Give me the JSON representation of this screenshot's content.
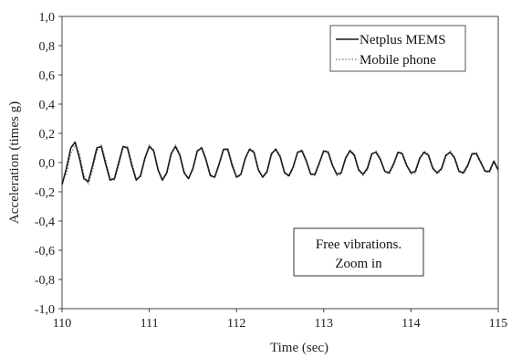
{
  "chart_data": {
    "type": "line",
    "xlabel": "Time (sec)",
    "ylabel": "Acceleration (times g)",
    "xlim": [
      110,
      115
    ],
    "ylim": [
      -1.0,
      1.0
    ],
    "xticks": [
      110,
      111,
      112,
      113,
      114,
      115
    ],
    "yticks": [
      -1.0,
      -0.8,
      -0.6,
      -0.4,
      -0.2,
      0.0,
      0.2,
      0.4,
      0.6,
      0.8,
      1.0
    ],
    "xtick_labels": [
      "110",
      "111",
      "112",
      "113",
      "114",
      "115"
    ],
    "ytick_labels": [
      "-1,0",
      "-0,8",
      "-0,6",
      "-0,4",
      "-0,2",
      "0,0",
      "0,2",
      "0,4",
      "0,6",
      "0,8",
      "1,0"
    ],
    "grid": "none",
    "legend_position": "top-right",
    "annotation": [
      "Free vibrations.",
      "Zoom in"
    ],
    "series": [
      {
        "name": "Netplus MEMS",
        "color": "#1a1a1a",
        "style": "solid",
        "x": [
          110.0,
          110.05,
          110.1,
          110.15,
          110.2,
          110.25,
          110.3,
          110.35,
          110.4,
          110.45,
          110.5,
          110.55,
          110.6,
          110.65,
          110.7,
          110.75,
          110.8,
          110.85,
          110.9,
          110.95,
          111.0,
          111.05,
          111.1,
          111.15,
          111.2,
          111.25,
          111.3,
          111.35,
          111.4,
          111.45,
          111.5,
          111.55,
          111.6,
          111.65,
          111.7,
          111.75,
          111.8,
          111.85,
          111.9,
          111.95,
          112.0,
          112.05,
          112.1,
          112.15,
          112.2,
          112.25,
          112.3,
          112.35,
          112.4,
          112.45,
          112.5,
          112.55,
          112.6,
          112.65,
          112.7,
          112.75,
          112.8,
          112.85,
          112.9,
          112.95,
          113.0,
          113.05,
          113.1,
          113.15,
          113.2,
          113.25,
          113.3,
          113.35,
          113.4,
          113.45,
          113.5,
          113.55,
          113.6,
          113.65,
          113.7,
          113.75,
          113.8,
          113.85,
          113.9,
          113.95,
          114.0,
          114.05,
          114.1,
          114.15,
          114.2,
          114.25,
          114.3,
          114.35,
          114.4,
          114.45,
          114.5,
          114.55,
          114.6,
          114.65,
          114.7,
          114.75,
          114.8,
          114.85,
          114.9,
          114.95,
          115.0
        ],
        "y": [
          -0.15,
          -0.04,
          0.1,
          0.14,
          0.03,
          -0.11,
          -0.13,
          -0.02,
          0.1,
          0.11,
          -0.01,
          -0.12,
          -0.11,
          0.0,
          0.11,
          0.1,
          -0.02,
          -0.12,
          -0.09,
          0.03,
          0.11,
          0.08,
          -0.05,
          -0.12,
          -0.07,
          0.06,
          0.11,
          0.05,
          -0.07,
          -0.11,
          -0.04,
          0.08,
          0.1,
          0.02,
          -0.09,
          -0.1,
          -0.01,
          0.09,
          0.09,
          -0.02,
          -0.1,
          -0.08,
          0.03,
          0.09,
          0.07,
          -0.05,
          -0.1,
          -0.06,
          0.06,
          0.09,
          0.04,
          -0.07,
          -0.09,
          -0.03,
          0.07,
          0.08,
          0.01,
          -0.08,
          -0.08,
          0.0,
          0.08,
          0.07,
          -0.02,
          -0.08,
          -0.07,
          0.03,
          0.08,
          0.05,
          -0.05,
          -0.08,
          -0.04,
          0.06,
          0.07,
          0.02,
          -0.06,
          -0.07,
          -0.01,
          0.07,
          0.06,
          -0.02,
          -0.07,
          -0.06,
          0.03,
          0.07,
          0.05,
          -0.04,
          -0.07,
          -0.04,
          0.05,
          0.07,
          0.03,
          -0.06,
          -0.07,
          -0.02,
          0.06,
          0.06,
          0.0,
          -0.06,
          -0.06,
          0.01,
          -0.05
        ]
      },
      {
        "name": "Mobile phone",
        "color": "#8a8a8a",
        "style": "dotted",
        "x": [
          110.0,
          110.05,
          110.1,
          110.15,
          110.2,
          110.25,
          110.3,
          110.35,
          110.4,
          110.45,
          110.5,
          110.55,
          110.6,
          110.65,
          110.7,
          110.75,
          110.8,
          110.85,
          110.9,
          110.95,
          111.0,
          111.05,
          111.1,
          111.15,
          111.2,
          111.25,
          111.3,
          111.35,
          111.4,
          111.45,
          111.5,
          111.55,
          111.6,
          111.65,
          111.7,
          111.75,
          111.8,
          111.85,
          111.9,
          111.95,
          112.0,
          112.05,
          112.1,
          112.15,
          112.2,
          112.25,
          112.3,
          112.35,
          112.4,
          112.45,
          112.5,
          112.55,
          112.6,
          112.65,
          112.7,
          112.75,
          112.8,
          112.85,
          112.9,
          112.95,
          113.0,
          113.05,
          113.1,
          113.15,
          113.2,
          113.25,
          113.3,
          113.35,
          113.4,
          113.45,
          113.5,
          113.55,
          113.6,
          113.65,
          113.7,
          113.75,
          113.8,
          113.85,
          113.9,
          113.95,
          114.0,
          114.05,
          114.1,
          114.15,
          114.2,
          114.25,
          114.3,
          114.35,
          114.4,
          114.45,
          114.5,
          114.55,
          114.6,
          114.65,
          114.7,
          114.75,
          114.8,
          114.85,
          114.9,
          114.95,
          115.0
        ],
        "y": [
          -0.12,
          -0.08,
          0.06,
          0.12,
          0.06,
          -0.08,
          -0.15,
          -0.05,
          0.08,
          0.12,
          0.02,
          -0.1,
          -0.12,
          -0.02,
          0.1,
          0.11,
          0.0,
          -0.11,
          -0.1,
          0.02,
          0.12,
          0.09,
          -0.04,
          -0.12,
          -0.08,
          0.05,
          0.12,
          0.06,
          -0.06,
          -0.11,
          -0.05,
          0.07,
          0.11,
          0.03,
          -0.08,
          -0.1,
          -0.02,
          0.09,
          0.1,
          0.0,
          -0.1,
          -0.09,
          0.02,
          0.1,
          0.08,
          -0.04,
          -0.1,
          -0.07,
          0.05,
          0.1,
          0.05,
          -0.06,
          -0.1,
          -0.04,
          0.07,
          0.09,
          0.02,
          -0.08,
          -0.09,
          -0.01,
          0.08,
          0.08,
          -0.01,
          -0.09,
          -0.08,
          0.02,
          0.09,
          0.06,
          -0.04,
          -0.09,
          -0.05,
          0.05,
          0.08,
          0.03,
          -0.06,
          -0.08,
          -0.02,
          0.07,
          0.07,
          -0.01,
          -0.08,
          -0.07,
          0.02,
          0.08,
          0.06,
          -0.03,
          -0.08,
          -0.05,
          0.04,
          0.08,
          0.04,
          -0.05,
          -0.08,
          -0.03,
          0.06,
          0.07,
          0.01,
          -0.06,
          -0.07,
          0.0,
          -0.06
        ]
      }
    ]
  }
}
